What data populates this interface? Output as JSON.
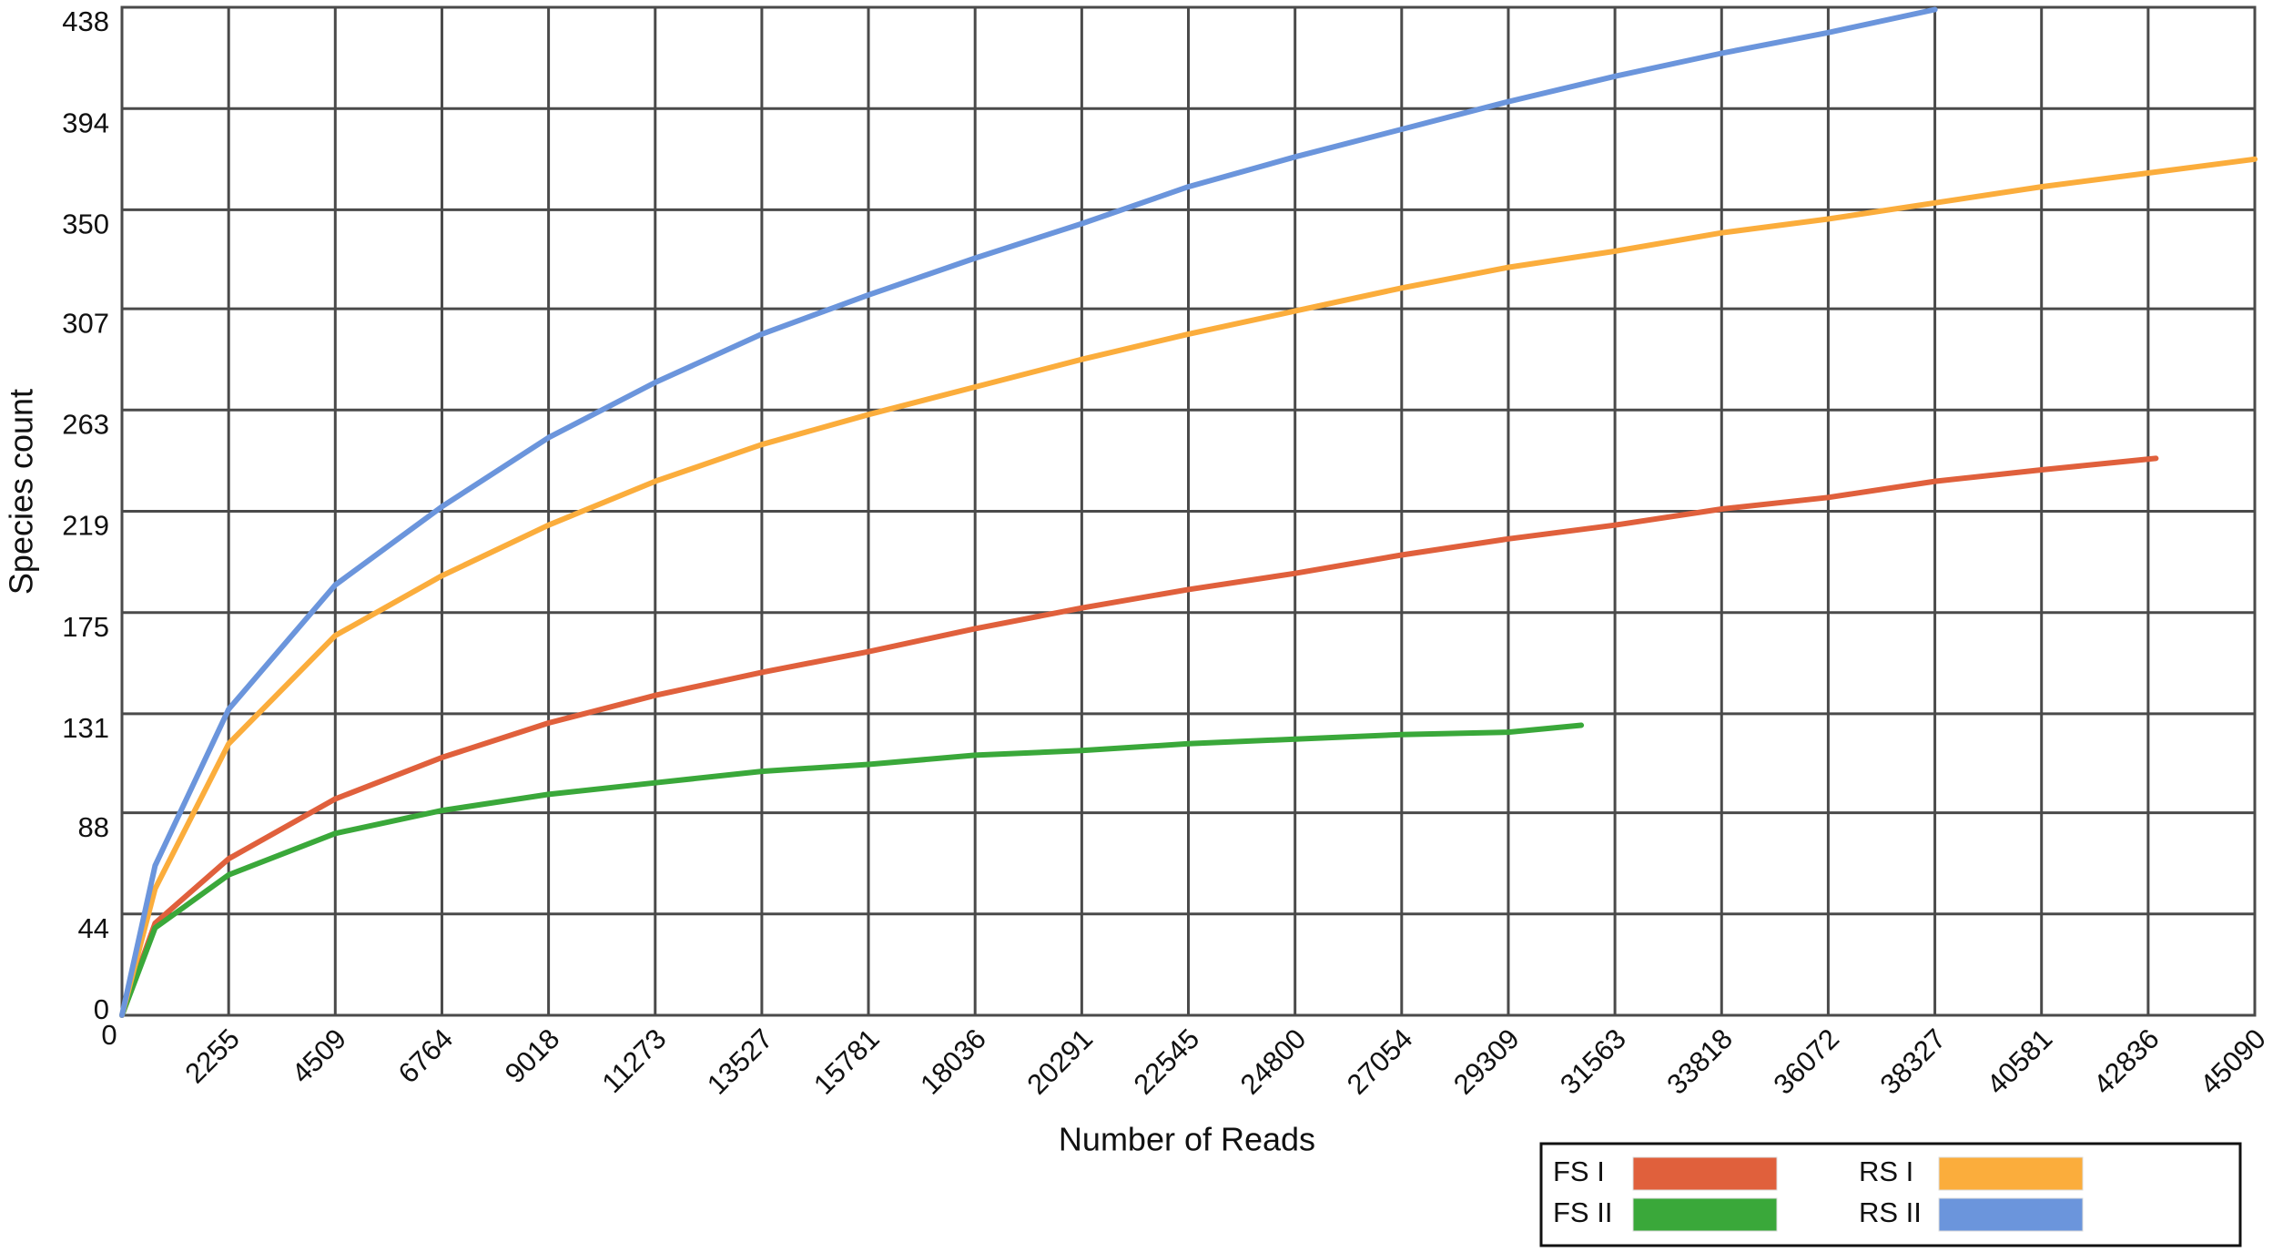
{
  "chart_data": {
    "type": "line",
    "xlabel": "Number of Reads",
    "ylabel": "Species count",
    "xlim": [
      0,
      45090
    ],
    "ylim": [
      0,
      438
    ],
    "xticks": [
      0,
      2255,
      4509,
      6764,
      9018,
      11273,
      13527,
      15781,
      18036,
      20291,
      22545,
      24800,
      27054,
      29309,
      31563,
      33818,
      36072,
      38327,
      40581,
      42836,
      45090
    ],
    "yticks": [
      0,
      44,
      88,
      131,
      175,
      219,
      263,
      307,
      350,
      394,
      438
    ],
    "grid": true,
    "legend": "bottom-right",
    "series": [
      {
        "name": "FS I",
        "color": "#e0603c",
        "x": [
          0,
          700,
          2255,
          4509,
          6764,
          9018,
          11273,
          13527,
          15781,
          18036,
          20291,
          22545,
          24800,
          27054,
          29309,
          31563,
          33818,
          36072,
          38327,
          40581,
          43000
        ],
        "values": [
          0,
          40,
          68,
          94,
          112,
          127,
          139,
          149,
          158,
          168,
          177,
          185,
          192,
          200,
          207,
          213,
          220,
          225,
          232,
          237,
          242
        ]
      },
      {
        "name": "FS II",
        "color": "#3aa83a",
        "x": [
          0,
          700,
          2255,
          4509,
          6764,
          9018,
          11273,
          13527,
          15781,
          18036,
          20291,
          22545,
          24800,
          27054,
          29309,
          30850
        ],
        "values": [
          0,
          38,
          61,
          79,
          89,
          96,
          101,
          106,
          109,
          113,
          115,
          118,
          120,
          122,
          123,
          126
        ]
      },
      {
        "name": "RS I",
        "color": "#fbad3c",
        "x": [
          0,
          700,
          2255,
          4509,
          6764,
          9018,
          11273,
          13527,
          15781,
          18036,
          20291,
          22545,
          24800,
          27054,
          29309,
          31563,
          33818,
          36072,
          38327,
          40581,
          42836,
          45090
        ],
        "values": [
          0,
          55,
          118,
          165,
          191,
          213,
          232,
          248,
          261,
          273,
          285,
          296,
          306,
          316,
          325,
          332,
          340,
          346,
          353,
          360,
          366,
          372
        ]
      },
      {
        "name": "RS II",
        "color": "#6b95dc",
        "x": [
          0,
          700,
          2255,
          4509,
          6764,
          9018,
          11273,
          13527,
          15781,
          18036,
          20291,
          22545,
          24800,
          27054,
          29309,
          31563,
          33818,
          36072,
          38327
        ],
        "values": [
          0,
          65,
          133,
          187,
          221,
          251,
          275,
          296,
          313,
          329,
          344,
          360,
          373,
          385,
          397,
          408,
          418,
          427,
          437
        ]
      }
    ]
  }
}
